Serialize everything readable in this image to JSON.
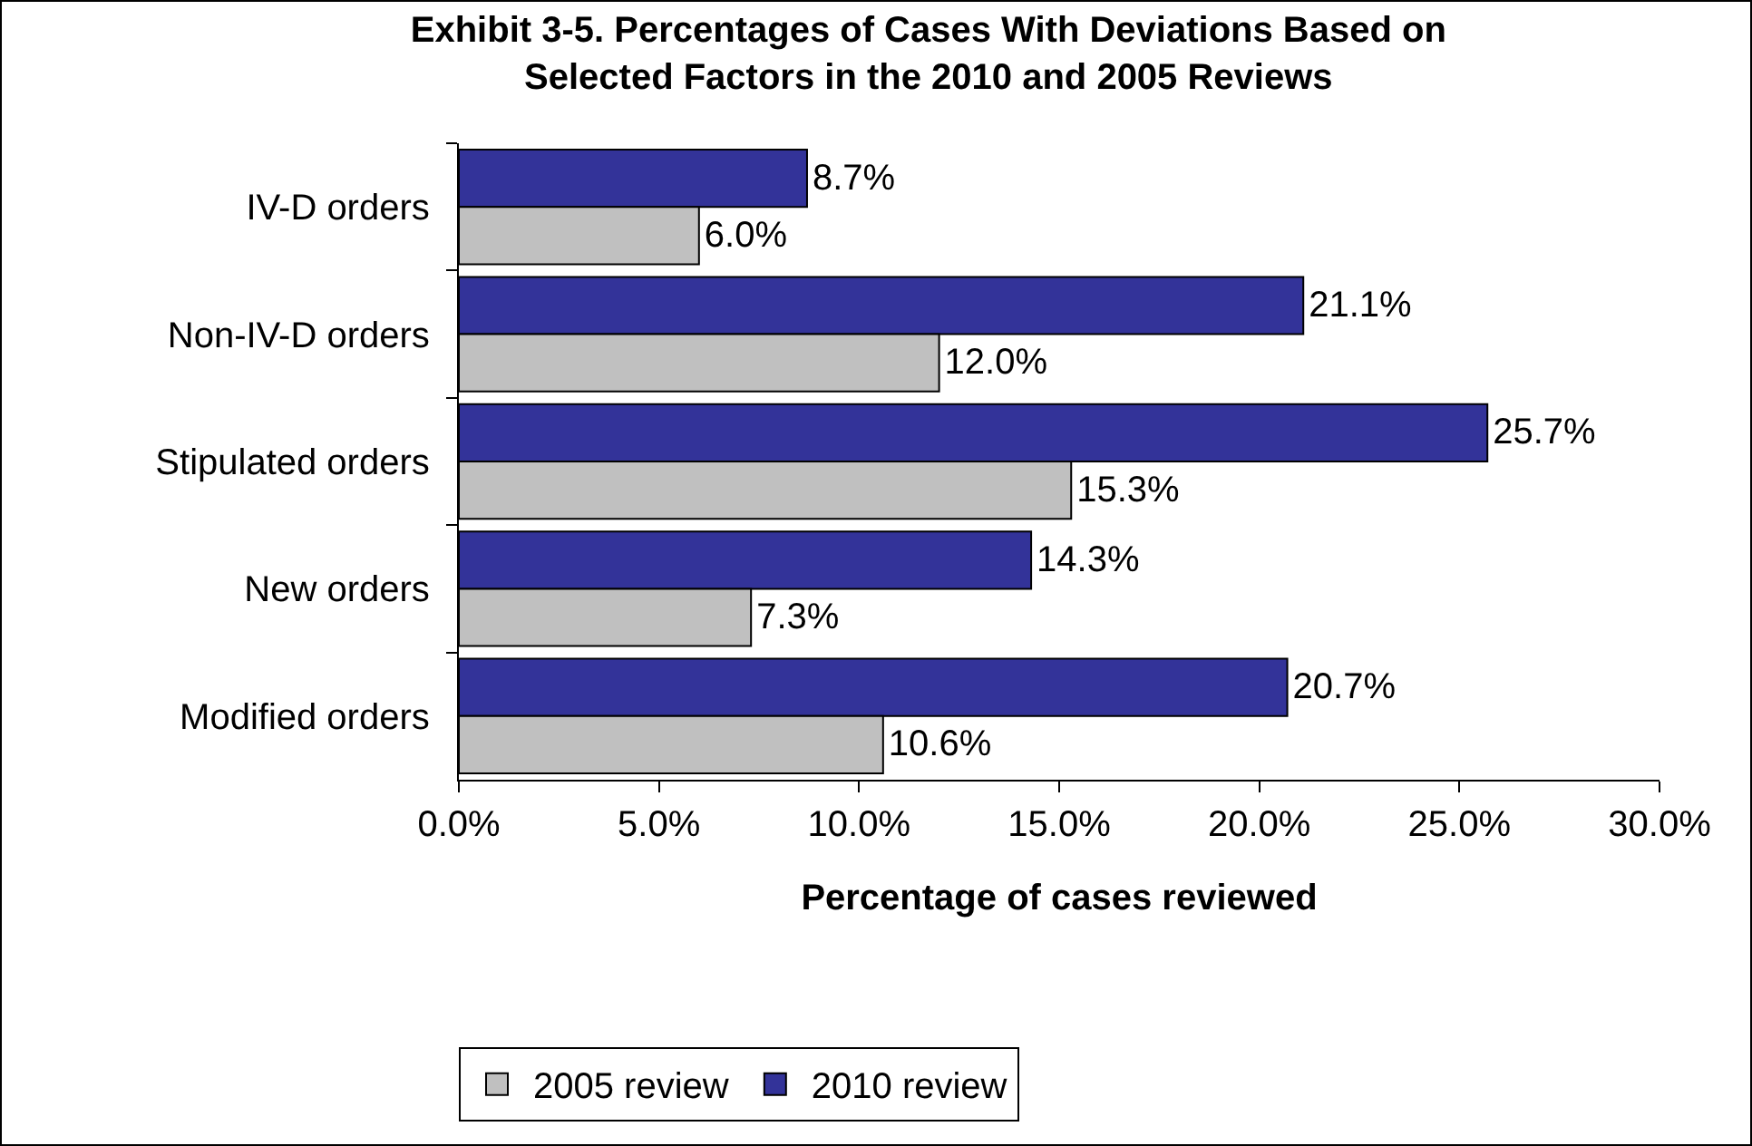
{
  "chart_data": {
    "type": "bar",
    "orientation": "horizontal",
    "title": "Exhibit 3-5. Percentages of Cases With Deviations Based on Selected Factors in the 2010 and 2005 Reviews",
    "xlabel": "Percentage of cases reviewed",
    "categories": [
      "IV-D orders",
      "Non-IV-D orders",
      "Stipulated orders",
      "New orders",
      "Modified orders"
    ],
    "series": [
      {
        "name": "2010 review",
        "color": "#333399",
        "values": [
          8.7,
          21.1,
          25.7,
          14.3,
          20.7
        ],
        "value_labels": [
          "8.7%",
          "21.1%",
          "25.7%",
          "14.3%",
          "20.7%"
        ]
      },
      {
        "name": "2005 review",
        "color": "#c0c0c0",
        "values": [
          6.0,
          12.0,
          15.3,
          7.3,
          10.6
        ],
        "value_labels": [
          "6.0%",
          "12.0%",
          "15.3%",
          "7.3%",
          "10.6%"
        ]
      }
    ],
    "xlim": [
      0,
      30
    ],
    "xticks": [
      {
        "value": 0,
        "label": "0.0%"
      },
      {
        "value": 5,
        "label": "5.0%"
      },
      {
        "value": 10,
        "label": "10.0%"
      },
      {
        "value": 15,
        "label": "15.0%"
      },
      {
        "value": 20,
        "label": "20.0%"
      },
      {
        "value": 25,
        "label": "25.0%"
      },
      {
        "value": 30,
        "label": "30.0%"
      }
    ],
    "grid": false,
    "legend": "bottom left"
  }
}
